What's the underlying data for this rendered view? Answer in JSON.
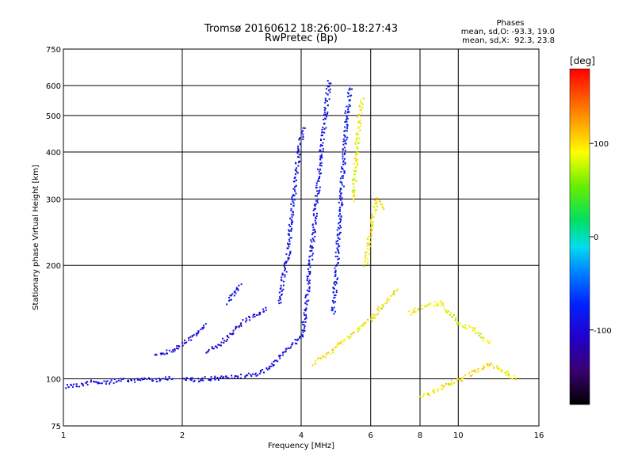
{
  "chart_data": {
    "type": "scatter",
    "title": "Tromsø 20160612 18:26:00–18:27:43",
    "subtitle": "RwPretec (Bp)",
    "info": {
      "heading": "Phases",
      "line_o": "mean, sd,O: -93.3, 19.0",
      "line_x": "mean, sd,X:  92.3, 23.8"
    },
    "xlabel": "Frequency [MHz]",
    "ylabel": "Stationary phase Virtual Height [km]",
    "x_scale": "log",
    "y_scale": "log",
    "xlim": [
      1,
      16
    ],
    "ylim": [
      75,
      750
    ],
    "x_ticks": [
      1,
      2,
      4,
      6,
      8,
      10,
      16
    ],
    "x_tick_labels": [
      "1",
      "2",
      "4",
      "6",
      "8",
      "10",
      "16"
    ],
    "y_ticks": [
      75,
      100,
      200,
      300,
      400,
      500,
      600,
      750
    ],
    "y_tick_labels": [
      "75",
      "100",
      "200",
      "300",
      "400",
      "500",
      "600",
      "750"
    ],
    "grid": true,
    "colorbar": {
      "label": "[deg]",
      "range": [
        -180,
        180
      ],
      "ticks": [
        100,
        0,
        -100
      ],
      "tick_labels": [
        "100",
        "0",
        "-100"
      ]
    },
    "traces": [
      {
        "phase": "O",
        "phase_deg": -95,
        "points": [
          [
            1.0,
            96
          ],
          [
            1.1,
            97
          ],
          [
            1.2,
            99
          ],
          [
            1.3,
            98
          ],
          [
            1.4,
            100
          ],
          [
            1.5,
            99
          ],
          [
            1.6,
            101
          ],
          [
            1.7,
            100
          ],
          [
            1.8,
            101
          ],
          [
            1.9,
            101
          ]
        ]
      },
      {
        "phase": "O",
        "phase_deg": -95,
        "points": [
          [
            2.0,
            100
          ],
          [
            2.2,
            100
          ],
          [
            2.4,
            101
          ],
          [
            2.6,
            101
          ],
          [
            2.8,
            102
          ],
          [
            3.0,
            103
          ],
          [
            3.2,
            105
          ],
          [
            3.4,
            110
          ],
          [
            3.6,
            118
          ],
          [
            3.8,
            125
          ],
          [
            4.0,
            130
          ]
        ]
      },
      {
        "phase": "O",
        "phase_deg": -90,
        "points": [
          [
            4.0,
            130
          ],
          [
            4.1,
            160
          ],
          [
            4.2,
            200
          ],
          [
            4.3,
            260
          ],
          [
            4.4,
            330
          ],
          [
            4.5,
            420
          ],
          [
            4.6,
            520
          ],
          [
            4.7,
            620
          ]
        ]
      },
      {
        "phase": "O",
        "phase_deg": -90,
        "points": [
          [
            3.5,
            160
          ],
          [
            3.7,
            220
          ],
          [
            3.8,
            300
          ],
          [
            3.9,
            380
          ],
          [
            4.0,
            450
          ],
          [
            4.05,
            470
          ]
        ]
      },
      {
        "phase": "O",
        "phase_deg": -85,
        "points": [
          [
            4.8,
            150
          ],
          [
            4.9,
            200
          ],
          [
            5.0,
            280
          ],
          [
            5.1,
            380
          ],
          [
            5.2,
            500
          ],
          [
            5.3,
            600
          ]
        ]
      },
      {
        "phase": "O",
        "phase_deg": -100,
        "points": [
          [
            2.3,
            118
          ],
          [
            2.5,
            125
          ],
          [
            2.7,
            135
          ],
          [
            2.9,
            145
          ],
          [
            3.1,
            150
          ],
          [
            3.3,
            155
          ]
        ]
      },
      {
        "phase": "O",
        "phase_deg": -100,
        "points": [
          [
            1.7,
            115
          ],
          [
            1.9,
            120
          ],
          [
            2.1,
            130
          ],
          [
            2.3,
            140
          ]
        ]
      },
      {
        "phase": "O",
        "phase_deg": -90,
        "points": [
          [
            2.6,
            160
          ],
          [
            2.7,
            170
          ],
          [
            2.8,
            180
          ]
        ]
      },
      {
        "phase": "X",
        "phase_deg": 92,
        "points": [
          [
            4.3,
            110
          ],
          [
            4.5,
            115
          ],
          [
            4.8,
            120
          ],
          [
            5.0,
            125
          ],
          [
            5.5,
            135
          ],
          [
            6.0,
            145
          ],
          [
            6.5,
            160
          ],
          [
            7.0,
            175
          ]
        ]
      },
      {
        "phase": "X",
        "phase_deg": 90,
        "points": [
          [
            5.4,
            300
          ],
          [
            5.5,
            400
          ],
          [
            5.6,
            500
          ],
          [
            5.7,
            560
          ]
        ]
      },
      {
        "phase": "X",
        "phase_deg": 95,
        "points": [
          [
            5.8,
            200
          ],
          [
            6.0,
            260
          ],
          [
            6.2,
            300
          ],
          [
            6.5,
            280
          ]
        ]
      },
      {
        "phase": "X",
        "phase_deg": 88,
        "points": [
          [
            7.5,
            150
          ],
          [
            8.0,
            155
          ],
          [
            9.0,
            160
          ],
          [
            10.0,
            140
          ],
          [
            11.0,
            135
          ],
          [
            12.0,
            125
          ]
        ]
      },
      {
        "phase": "X",
        "phase_deg": 100,
        "points": [
          [
            8.0,
            90
          ],
          [
            9.0,
            95
          ],
          [
            10.0,
            100
          ],
          [
            12.0,
            110
          ],
          [
            14.0,
            100
          ]
        ]
      }
    ]
  }
}
